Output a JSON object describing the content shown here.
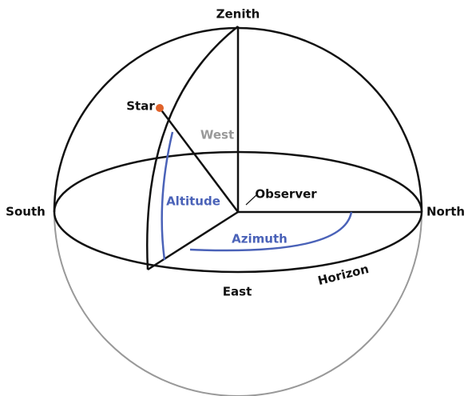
{
  "labels": {
    "zenith": "Zenith",
    "star": "Star",
    "west": "West",
    "altitude": "Altitude",
    "observer": "Observer",
    "south": "South",
    "north": "North",
    "azimuth": "Azimuth",
    "east": "East",
    "horizon": "Horizon"
  }
}
